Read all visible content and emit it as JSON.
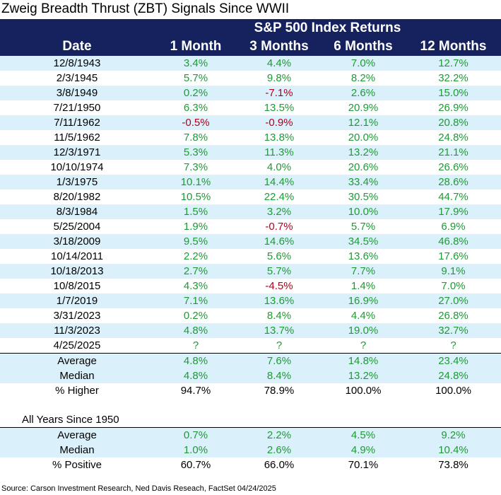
{
  "title": "Zweig Breadth Thrust (ZBT) Signals Since WWII",
  "header": {
    "group_label": "S&P 500 Index Returns",
    "columns": [
      "Date",
      "1 Month",
      "3 Months",
      "6 Months",
      "12 Months"
    ]
  },
  "colors": {
    "header_bg": "#15225e",
    "band": "#daf0fa",
    "positive": "#1f9a35",
    "negative": "#b3001b"
  },
  "chart_data": {
    "type": "table",
    "title": "Zweig Breadth Thrust (ZBT) Signals Since WWII",
    "columns": [
      "Date",
      "1 Month",
      "3 Months",
      "6 Months",
      "12 Months"
    ],
    "rows": [
      [
        "12/8/1943",
        "3.4%",
        "4.4%",
        "7.0%",
        "12.7%"
      ],
      [
        "2/3/1945",
        "5.7%",
        "9.8%",
        "8.2%",
        "32.2%"
      ],
      [
        "3/8/1949",
        "0.2%",
        "-7.1%",
        "2.6%",
        "15.0%"
      ],
      [
        "7/21/1950",
        "6.3%",
        "13.5%",
        "20.9%",
        "26.9%"
      ],
      [
        "7/11/1962",
        "-0.5%",
        "-0.9%",
        "12.1%",
        "20.8%"
      ],
      [
        "11/5/1962",
        "7.8%",
        "13.8%",
        "20.0%",
        "24.8%"
      ],
      [
        "12/3/1971",
        "5.3%",
        "11.3%",
        "13.2%",
        "21.1%"
      ],
      [
        "10/10/1974",
        "7.3%",
        "4.0%",
        "20.6%",
        "26.6%"
      ],
      [
        "1/3/1975",
        "10.1%",
        "14.4%",
        "33.4%",
        "28.6%"
      ],
      [
        "8/20/1982",
        "10.5%",
        "22.4%",
        "30.5%",
        "44.7%"
      ],
      [
        "8/3/1984",
        "1.5%",
        "3.2%",
        "10.0%",
        "17.9%"
      ],
      [
        "5/25/2004",
        "1.9%",
        "-0.7%",
        "5.7%",
        "6.9%"
      ],
      [
        "3/18/2009",
        "9.5%",
        "14.6%",
        "34.5%",
        "46.8%"
      ],
      [
        "10/14/2011",
        "2.2%",
        "5.6%",
        "13.6%",
        "17.6%"
      ],
      [
        "10/18/2013",
        "2.7%",
        "5.7%",
        "7.7%",
        "9.1%"
      ],
      [
        "10/8/2015",
        "4.3%",
        "-4.5%",
        "1.4%",
        "7.0%"
      ],
      [
        "1/7/2019",
        "7.1%",
        "13.6%",
        "16.9%",
        "27.0%"
      ],
      [
        "3/31/2023",
        "0.2%",
        "8.4%",
        "4.4%",
        "26.8%"
      ],
      [
        "11/3/2023",
        "4.8%",
        "13.7%",
        "19.0%",
        "32.7%"
      ],
      [
        "4/25/2025",
        "?",
        "?",
        "?",
        "?"
      ]
    ],
    "summary": [
      [
        "Average",
        "4.8%",
        "7.6%",
        "14.8%",
        "23.4%"
      ],
      [
        "Median",
        "4.8%",
        "8.4%",
        "13.2%",
        "24.8%"
      ],
      [
        "% Higher",
        "94.7%",
        "78.9%",
        "100.0%",
        "100.0%"
      ]
    ],
    "all_years": {
      "title": "All Years Since 1950",
      "rows": [
        [
          "Average",
          "0.7%",
          "2.2%",
          "4.5%",
          "9.2%"
        ],
        [
          "Median",
          "1.0%",
          "2.6%",
          "4.9%",
          "10.4%"
        ],
        [
          "% Positive",
          "60.7%",
          "66.0%",
          "70.1%",
          "73.8%"
        ]
      ]
    }
  },
  "source": "Source: Carson Investment Research, Ned Davis Reseach, FactSet 04/24/2025"
}
